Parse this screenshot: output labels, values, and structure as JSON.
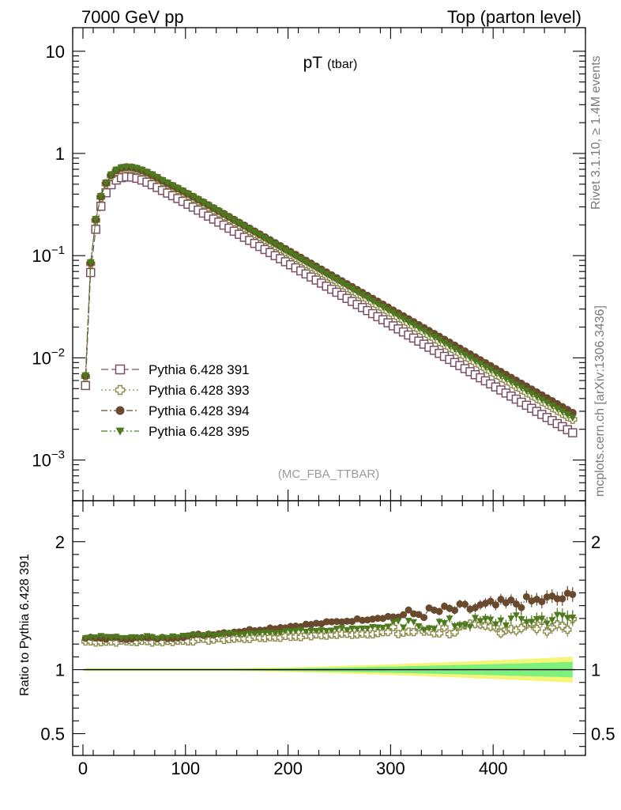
{
  "header": {
    "left": "7000 GeV pp",
    "right": "Top (parton level)"
  },
  "side_labels": {
    "rivet": "Rivet 3.1.10, ≥ 1.4M events",
    "mcplots": "mcplots.cern.ch [arXiv:1306.3436]"
  },
  "chart_data": [
    {
      "type": "scatter",
      "title": "pT",
      "title_sub": "(tbar)",
      "annotation": "(MC_FBA_TTBAR)",
      "xlim": [
        -10,
        490
      ],
      "ylim": [
        0.0004,
        17
      ],
      "yscale": "log",
      "x_ticks": [
        0,
        100,
        200,
        300,
        400
      ],
      "y_ticks": [
        {
          "value": 10,
          "label": "10"
        },
        {
          "value": 1,
          "label": "1"
        },
        {
          "value": 0.1,
          "base": "10",
          "exp": "−1"
        },
        {
          "value": 0.01,
          "base": "10",
          "exp": "−2"
        },
        {
          "value": 0.001,
          "base": "10",
          "exp": "−3"
        }
      ],
      "legend_position": "bottom-left",
      "series": [
        {
          "name": "Pythia 6.428 391",
          "color": "#7b4f64",
          "marker": "open-square",
          "line": "dashed",
          "peak": 0.59,
          "end": 0.00185,
          "s_ratio": 0
        },
        {
          "name": "Pythia 6.428 393",
          "color": "#8c8a4a",
          "marker": "open-cross",
          "line": "dotted",
          "peak": 0.72,
          "end": 0.0025,
          "s_ratio": 1.2
        },
        {
          "name": "Pythia 6.428 394",
          "color": "#6a4a2e",
          "marker": "filled-circle",
          "line": "dashdot",
          "peak": 0.735,
          "end": 0.0029,
          "s_ratio": 1.4
        },
        {
          "name": "Pythia 6.428 395",
          "color": "#4e7a1e",
          "marker": "filled-triangle-down",
          "line": "dashdotdot",
          "peak": 0.74,
          "end": 0.0026,
          "s_ratio": 1.3
        }
      ]
    },
    {
      "type": "scatter",
      "ylabel": "Ratio to Pythia 6.428 391",
      "xlim": [
        -10,
        490
      ],
      "ylim": [
        0.33,
        2.32
      ],
      "x_ticks": [
        0,
        100,
        200,
        300,
        400
      ],
      "y_ticks": [
        {
          "value": 2,
          "label": "2"
        },
        {
          "value": 1,
          "label": "1"
        },
        {
          "value": 0.5,
          "label": "0.5"
        }
      ],
      "reference_line": 1,
      "band_colors": {
        "inner": "#7ef07e",
        "outer": "#f5f57a"
      }
    }
  ]
}
